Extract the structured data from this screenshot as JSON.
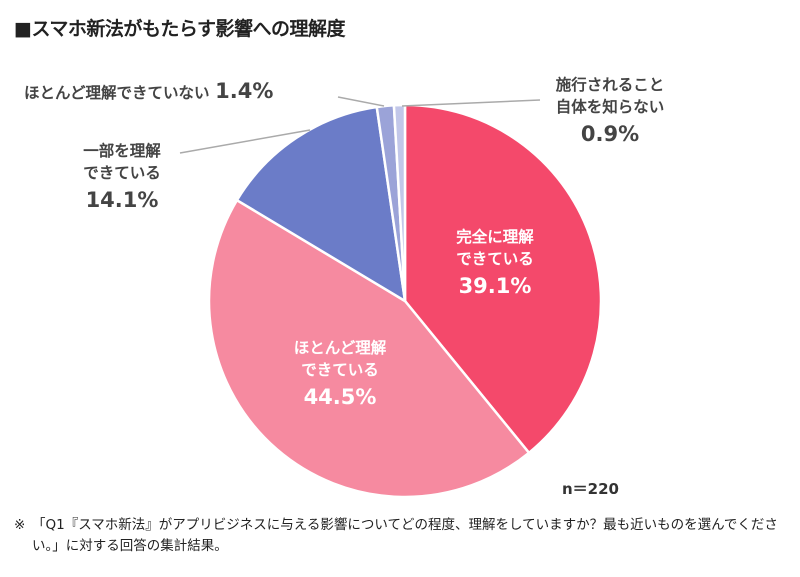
{
  "title": "■スマホ新法がもたらす影響への理解度",
  "chart_data": {
    "type": "pie",
    "title": "■スマホ新法がもたらす影響への理解度",
    "start": "12 o'clock, clockwise",
    "slices": [
      {
        "label_lines": [
          "完全に理解",
          "できている"
        ],
        "label": "完全に理解できている",
        "value": 39.1,
        "value_label": "39.1%",
        "color": "#f4496b"
      },
      {
        "label_lines": [
          "ほとんど理解",
          "できている"
        ],
        "label": "ほとんど理解できている",
        "value": 44.5,
        "value_label": "44.5%",
        "color": "#f68aa0"
      },
      {
        "label_lines": [
          "一部を理解",
          "できている"
        ],
        "label": "一部を理解できている",
        "value": 14.1,
        "value_label": "14.1%",
        "color": "#6b7cc8"
      },
      {
        "label_lines": [
          "ほとんど理解できていない"
        ],
        "label": "ほとんど理解できていない",
        "value": 1.4,
        "value_label": "1.4%",
        "color": "#9ba3d8"
      },
      {
        "label_lines": [
          "施行されること",
          "自体を知らない"
        ],
        "label": "施行されること自体を知らない",
        "value": 0.9,
        "value_label": "0.9%",
        "color": "#c2c7e9"
      }
    ],
    "sample_size": "n＝220"
  },
  "note_mark": "※",
  "note": "「Q1『スマホ新法』がアプリビジネスに与える影響についてどの程度、理解をしていますか？最も近いものを選んでください。」に対する回答の集計結果。"
}
